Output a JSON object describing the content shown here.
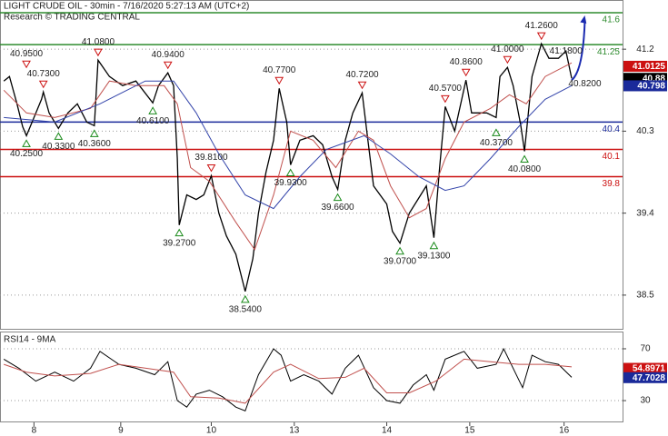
{
  "chart_data": [
    {
      "type": "line",
      "title": "LIGHT CRUDE OIL - 30min - 7/16/2020 5:27:13 AM (UTC+2)",
      "subtitle": "Research © TRADING CENTRAL",
      "xlim": [
        0,
        330
      ],
      "ylim": [
        38.13,
        41.74
      ],
      "yticks": [
        41.2,
        40.3,
        39.4,
        38.5
      ],
      "grid": true,
      "series": [
        {
          "color": "#000000",
          "x": [
            2,
            5,
            9,
            12,
            14,
            18,
            22,
            23,
            26,
            31,
            36,
            41,
            46,
            50,
            52,
            58,
            65,
            72,
            81,
            84,
            89,
            92,
            94,
            95,
            99,
            104,
            108,
            112,
            116,
            120,
            125,
            130,
            134,
            137,
            141,
            145,
            148,
            152,
            154,
            159,
            166,
            171,
            176,
            179,
            183,
            187,
            192,
            195,
            198,
            205,
            208,
            212,
            217,
            223,
            226,
            230,
            233,
            236,
            241,
            247,
            250,
            258,
            263,
            265,
            269,
            272,
            276,
            278,
            282,
            287,
            291,
            296,
            300,
            303
          ],
          "values": [
            40.85,
            40.9,
            40.6,
            40.35,
            40.25,
            40.45,
            40.65,
            40.73,
            40.5,
            40.33,
            40.5,
            40.6,
            40.4,
            40.36,
            41.08,
            40.9,
            40.8,
            40.85,
            40.61,
            40.8,
            40.94,
            40.8,
            40.0,
            39.27,
            39.6,
            39.55,
            39.6,
            39.81,
            39.4,
            39.15,
            38.95,
            38.54,
            38.9,
            39.4,
            39.85,
            40.2,
            40.77,
            40.4,
            39.93,
            40.2,
            40.25,
            40.15,
            39.8,
            39.66,
            40.2,
            40.5,
            40.72,
            40.2,
            39.7,
            39.5,
            39.2,
            39.07,
            39.4,
            39.6,
            39.7,
            39.13,
            39.9,
            40.57,
            40.3,
            40.86,
            40.5,
            40.5,
            40.45,
            40.9,
            41.0,
            40.8,
            40.37,
            40.08,
            40.9,
            41.26,
            41.1,
            41.1,
            41.18,
            40.88
          ]
        },
        {
          "color": "#c0504d",
          "x": [
            2,
            14,
            29,
            48,
            58,
            72,
            87,
            94,
            101,
            111,
            125,
            135,
            145,
            154,
            166,
            178,
            190,
            198,
            207,
            217,
            226,
            236,
            246,
            260,
            270,
            279,
            289,
            303
          ],
          "values": [
            40.75,
            40.5,
            40.45,
            40.55,
            40.85,
            40.8,
            40.8,
            40.6,
            39.9,
            39.75,
            39.3,
            39.0,
            39.6,
            40.3,
            40.2,
            39.9,
            40.3,
            40.2,
            39.7,
            39.35,
            39.45,
            40.0,
            40.4,
            40.55,
            40.7,
            40.6,
            40.9,
            41.05
          ]
        },
        {
          "color": "#3344aa",
          "x": [
            2,
            29,
            53,
            77,
            92,
            104,
            116,
            130,
            145,
            159,
            173,
            193,
            207,
            222,
            236,
            246,
            260,
            275,
            289,
            303
          ],
          "values": [
            40.45,
            40.4,
            40.6,
            40.85,
            40.85,
            40.5,
            40.05,
            39.6,
            39.45,
            39.8,
            40.1,
            40.25,
            40.05,
            39.8,
            39.65,
            39.7,
            40.0,
            40.35,
            40.65,
            40.8
          ]
        }
      ],
      "levels": [
        {
          "value": 41.6,
          "color": "#2e8b2e"
        },
        {
          "value": 41.25,
          "color": "#2e8b2e"
        },
        {
          "value": 40.4,
          "color": "#1a2a9a"
        },
        {
          "value": 40.1,
          "color": "#cc1111"
        },
        {
          "value": 39.8,
          "color": "#cc1111"
        }
      ],
      "annotations": [
        {
          "label": "40.9500",
          "x": 14,
          "y": 40.95,
          "kind": "high"
        },
        {
          "label": "40.7300",
          "x": 23,
          "y": 40.73,
          "kind": "high"
        },
        {
          "label": "41.0800",
          "x": 52,
          "y": 41.08,
          "kind": "high"
        },
        {
          "label": "40.9400",
          "x": 89,
          "y": 40.94,
          "kind": "high"
        },
        {
          "label": "39.8100",
          "x": 112,
          "y": 39.81,
          "kind": "high"
        },
        {
          "label": "40.7700",
          "x": 148,
          "y": 40.77,
          "kind": "high"
        },
        {
          "label": "40.7200",
          "x": 192,
          "y": 40.72,
          "kind": "high"
        },
        {
          "label": "40.5700",
          "x": 236,
          "y": 40.57,
          "kind": "high"
        },
        {
          "label": "40.8600",
          "x": 247,
          "y": 40.86,
          "kind": "high"
        },
        {
          "label": "41.0000",
          "x": 269,
          "y": 41.0,
          "kind": "high"
        },
        {
          "label": "41.2600",
          "x": 287,
          "y": 41.26,
          "kind": "high"
        },
        {
          "label": "40.2500",
          "x": 14,
          "y": 40.25,
          "kind": "low"
        },
        {
          "label": "40.3300",
          "x": 31,
          "y": 40.33,
          "kind": "low"
        },
        {
          "label": "40.3600",
          "x": 50,
          "y": 40.36,
          "kind": "low"
        },
        {
          "label": "40.6100",
          "x": 81,
          "y": 40.61,
          "kind": "low"
        },
        {
          "label": "39.2700",
          "x": 95,
          "y": 39.27,
          "kind": "low"
        },
        {
          "label": "38.5400",
          "x": 130,
          "y": 38.54,
          "kind": "low"
        },
        {
          "label": "39.9300",
          "x": 154,
          "y": 39.93,
          "kind": "low"
        },
        {
          "label": "39.6600",
          "x": 179,
          "y": 39.66,
          "kind": "low"
        },
        {
          "label": "39.0700",
          "x": 212,
          "y": 39.07,
          "kind": "low"
        },
        {
          "label": "39.1300",
          "x": 230,
          "y": 39.13,
          "kind": "low"
        },
        {
          "label": "40.3700",
          "x": 263,
          "y": 40.37,
          "kind": "low"
        },
        {
          "label": "40.0800",
          "x": 278,
          "y": 40.08,
          "kind": "low"
        },
        {
          "label": "41.1800",
          "x": 300,
          "y": 41.18,
          "kind": "target"
        },
        {
          "label": "40.8200",
          "x": 310,
          "y": 40.82,
          "kind": "target"
        }
      ],
      "arrow": {
        "color": "#1a2ab0",
        "x": [
          303,
          310
        ],
        "values": [
          40.86,
          41.57
        ]
      },
      "badges": [
        {
          "value": 41.0125,
          "color": "#cc1111"
        },
        {
          "value": 40.88,
          "color": "#000000"
        },
        {
          "value": 40.798,
          "color": "#1a2a9a"
        }
      ]
    },
    {
      "type": "line",
      "title": "RSI14 - 9MA",
      "xlim": [
        0,
        330
      ],
      "ylim": [
        13.2,
        83.3
      ],
      "yticks": [
        70,
        30
      ],
      "xticks": [
        {
          "value": 18,
          "label": "8"
        },
        {
          "value": 64,
          "label": "9"
        },
        {
          "value": 112,
          "label": "10"
        },
        {
          "value": 156,
          "label": "13"
        },
        {
          "value": 205,
          "label": "14"
        },
        {
          "value": 249,
          "label": "15"
        },
        {
          "value": 299,
          "label": "16"
        }
      ],
      "grid": true,
      "series": [
        {
          "color": "#000000",
          "x": [
            2,
            10,
            19,
            29,
            39,
            48,
            53,
            63,
            72,
            82,
            89,
            94,
            99,
            104,
            111,
            118,
            125,
            130,
            137,
            145,
            149,
            154,
            161,
            169,
            176,
            183,
            190,
            198,
            205,
            212,
            219,
            226,
            230,
            236,
            246,
            253,
            263,
            267,
            277,
            282,
            289,
            296,
            303
          ],
          "values": [
            62,
            55,
            45,
            52,
            45,
            55,
            68,
            58,
            55,
            50,
            60,
            30,
            25,
            35,
            38,
            33,
            25,
            22,
            50,
            70,
            65,
            45,
            50,
            45,
            35,
            55,
            65,
            40,
            30,
            28,
            42,
            50,
            38,
            62,
            68,
            55,
            58,
            70,
            40,
            65,
            60,
            58,
            48
          ]
        },
        {
          "color": "#c0504d",
          "x": [
            2,
            14,
            29,
            48,
            63,
            82,
            92,
            101,
            116,
            130,
            145,
            154,
            169,
            183,
            193,
            205,
            217,
            231,
            246,
            260,
            275,
            289,
            303
          ],
          "values": [
            58,
            52,
            49,
            51,
            58,
            54,
            52,
            33,
            32,
            28,
            52,
            58,
            47,
            48,
            55,
            36,
            36,
            45,
            62,
            60,
            58,
            58,
            56
          ]
        }
      ],
      "badges": [
        {
          "value": 54.8971,
          "color": "#cc1111"
        },
        {
          "value": 47.7028,
          "color": "#1a2a9a"
        }
      ]
    }
  ]
}
